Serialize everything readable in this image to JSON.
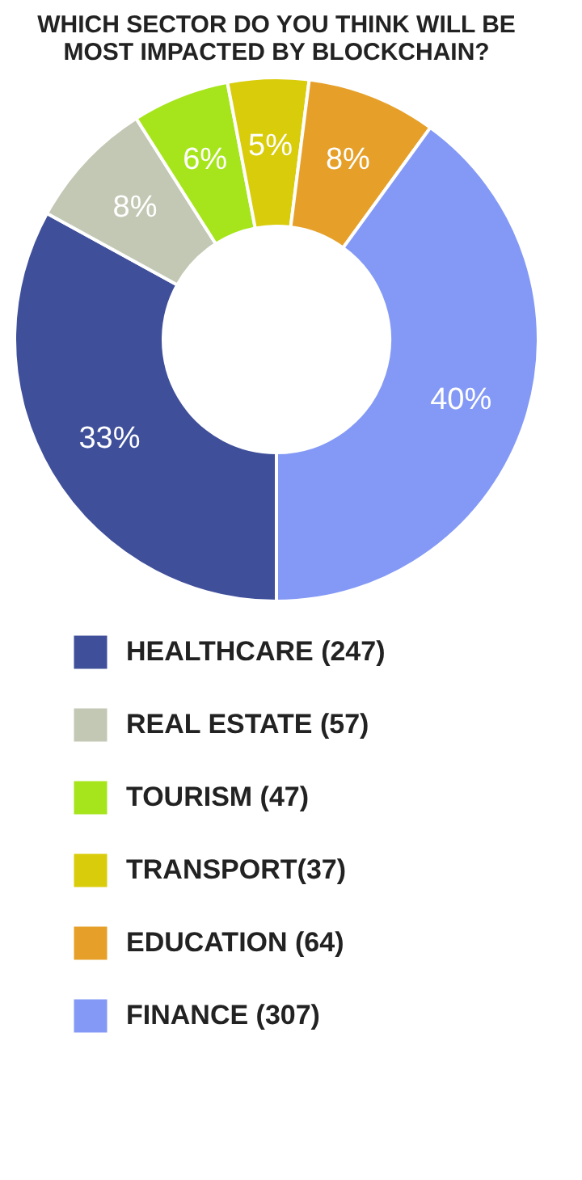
{
  "chart_data": {
    "type": "donut",
    "title": [
      "WHICH SECTOR DO YOU THINK WILL BE",
      "MOST IMPACTED BY BLOCKCHAIN?"
    ],
    "categories": [
      "HEALTHCARE (247)",
      "REAL ESTATE (57)",
      "TOURISM (47)",
      "TRANSPORT(37)",
      "EDUCATION (64)",
      "FINANCE (307)"
    ],
    "values": [
      33,
      8,
      6,
      5,
      8,
      40
    ],
    "value_labels": [
      "33%",
      "8%",
      "6%",
      "5%",
      "8%",
      "40%"
    ],
    "colors": [
      "#3f4f9a",
      "#c3c8b4",
      "#a6e51c",
      "#d9cc0a",
      "#e6a02a",
      "#8399f5"
    ],
    "legend": "bottom"
  }
}
